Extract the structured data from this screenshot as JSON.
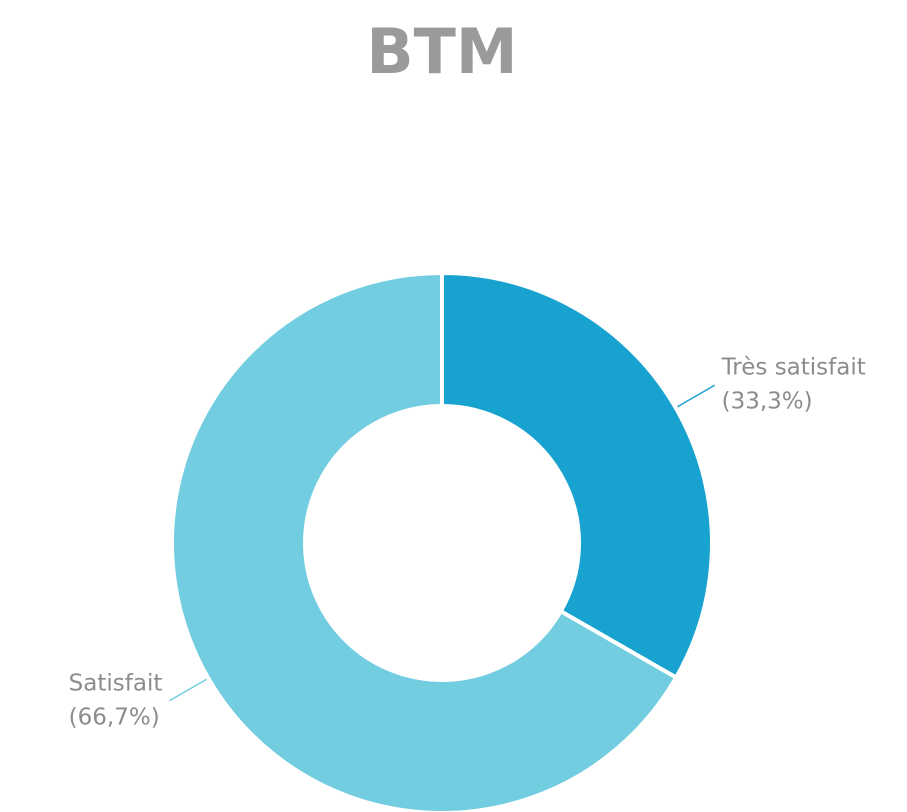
{
  "chart_data": {
    "type": "pie",
    "title": "BTM",
    "categories": [
      "Très satisfait",
      "Satisfait"
    ],
    "values": [
      33.3,
      66.7
    ],
    "value_labels": [
      "(33,3%)",
      "(66,7%)"
    ],
    "colors": [
      "#18a2cf",
      "#72cde0"
    ]
  }
}
